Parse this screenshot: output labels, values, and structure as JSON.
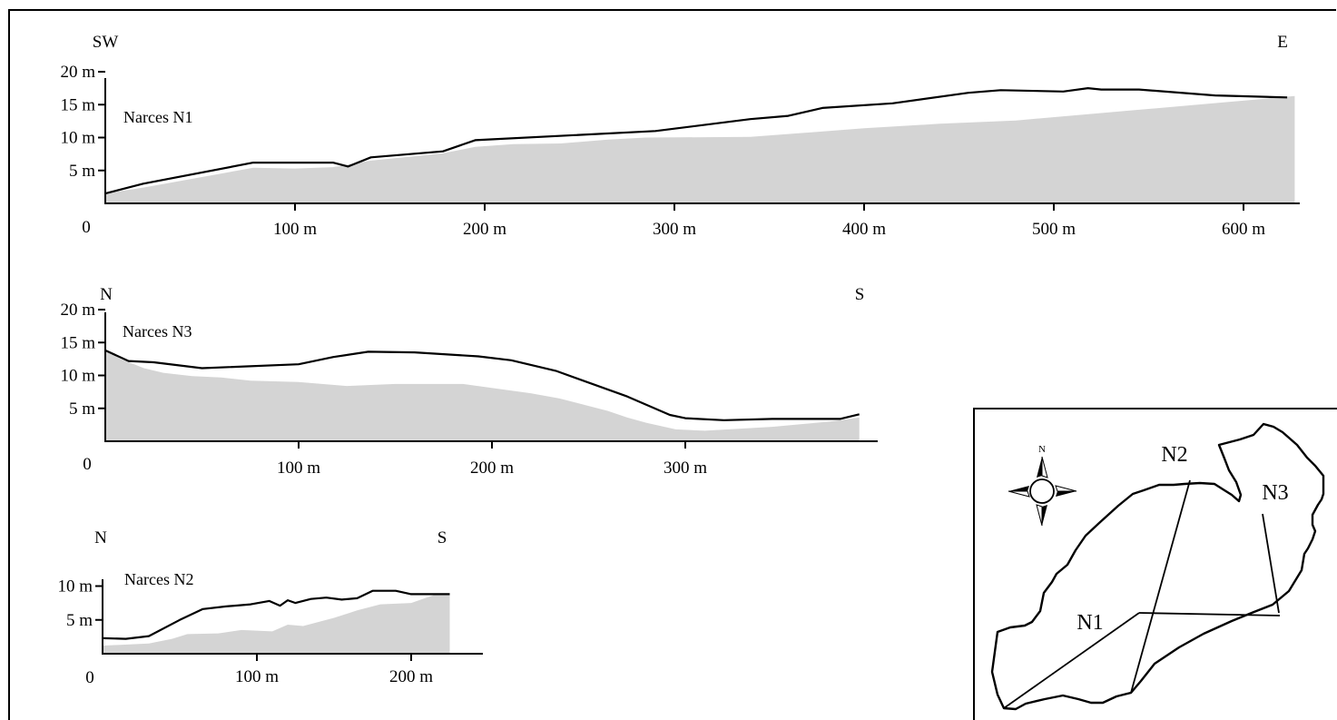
{
  "profiles": [
    {
      "id": "n1",
      "name": "Narces N1",
      "dir_left": "SW",
      "dir_right": "E",
      "origin_label": "0",
      "x_ticks": [
        {
          "value": 100,
          "label": "100 m"
        },
        {
          "value": 200,
          "label": "200 m"
        },
        {
          "value": 300,
          "label": "300 m"
        },
        {
          "value": 400,
          "label": "400 m"
        },
        {
          "value": 500,
          "label": "500 m"
        },
        {
          "value": 600,
          "label": "600 m"
        }
      ],
      "y_ticks": [
        {
          "value": 5,
          "label": "5 m"
        },
        {
          "value": 10,
          "label": "10 m"
        },
        {
          "value": 15,
          "label": "15 m"
        },
        {
          "value": 20,
          "label": "20 m"
        }
      ],
      "surface": [
        [
          0,
          1.5
        ],
        [
          20,
          3
        ],
        [
          78,
          6.2
        ],
        [
          120,
          6.2
        ],
        [
          128,
          5.6
        ],
        [
          140,
          7
        ],
        [
          178,
          7.9
        ],
        [
          195,
          9.6
        ],
        [
          290,
          11
        ],
        [
          340,
          12.8
        ],
        [
          360,
          13.3
        ],
        [
          378,
          14.5
        ],
        [
          415,
          15.2
        ],
        [
          455,
          16.8
        ],
        [
          472,
          17.2
        ],
        [
          505,
          17
        ],
        [
          518,
          17.5
        ],
        [
          525,
          17.3
        ],
        [
          545,
          17.3
        ],
        [
          585,
          16.4
        ],
        [
          623,
          16.1
        ]
      ],
      "ground": [
        [
          0,
          1.5
        ],
        [
          20,
          2.4
        ],
        [
          78,
          5.4
        ],
        [
          100,
          5.3
        ],
        [
          120,
          5.5
        ],
        [
          140,
          6.5
        ],
        [
          178,
          7.6
        ],
        [
          195,
          8.6
        ],
        [
          215,
          9
        ],
        [
          240,
          9.1
        ],
        [
          265,
          9.7
        ],
        [
          285,
          10
        ],
        [
          340,
          10.1
        ],
        [
          400,
          11.4
        ],
        [
          440,
          12.1
        ],
        [
          480,
          12.6
        ],
        [
          540,
          14.1
        ],
        [
          580,
          15.1
        ],
        [
          627,
          16.3
        ]
      ]
    },
    {
      "id": "n3",
      "name": "Narces N3",
      "dir_left": "N",
      "dir_right": "S",
      "origin_label": "0",
      "x_ticks": [
        {
          "value": 100,
          "label": "100 m"
        },
        {
          "value": 200,
          "label": "200 m"
        },
        {
          "value": 300,
          "label": "300 m"
        }
      ],
      "y_ticks": [
        {
          "value": 5,
          "label": "5 m"
        },
        {
          "value": 10,
          "label": "10 m"
        },
        {
          "value": 15,
          "label": "15 m"
        },
        {
          "value": 20,
          "label": "20 m"
        }
      ],
      "surface": [
        [
          0,
          13.8
        ],
        [
          12,
          12.2
        ],
        [
          25,
          12
        ],
        [
          50,
          11.1
        ],
        [
          100,
          11.7
        ],
        [
          118,
          12.8
        ],
        [
          136,
          13.6
        ],
        [
          160,
          13.5
        ],
        [
          193,
          12.9
        ],
        [
          210,
          12.3
        ],
        [
          233,
          10.7
        ],
        [
          270,
          6.8
        ],
        [
          292,
          4
        ],
        [
          300,
          3.5
        ],
        [
          320,
          3.2
        ],
        [
          345,
          3.4
        ],
        [
          380,
          3.4
        ],
        [
          390,
          4.1
        ]
      ],
      "ground": [
        [
          0,
          13.8
        ],
        [
          8,
          12.5
        ],
        [
          20,
          11.1
        ],
        [
          30,
          10.4
        ],
        [
          45,
          9.9
        ],
        [
          60,
          9.7
        ],
        [
          75,
          9.2
        ],
        [
          100,
          9
        ],
        [
          125,
          8.4
        ],
        [
          150,
          8.7
        ],
        [
          185,
          8.7
        ],
        [
          205,
          7.9
        ],
        [
          220,
          7.3
        ],
        [
          235,
          6.5
        ],
        [
          260,
          4.6
        ],
        [
          270,
          3.6
        ],
        [
          280,
          2.8
        ],
        [
          295,
          1.8
        ],
        [
          310,
          1.6
        ],
        [
          345,
          2.2
        ],
        [
          375,
          3
        ],
        [
          390,
          3.6
        ]
      ]
    },
    {
      "id": "n2",
      "name": "Narces N2",
      "dir_left": "N",
      "dir_right": "S",
      "origin_label": "0",
      "x_ticks": [
        {
          "value": 100,
          "label": "100 m"
        },
        {
          "value": 200,
          "label": "200 m"
        }
      ],
      "y_ticks": [
        {
          "value": 5,
          "label": "5 m"
        },
        {
          "value": 10,
          "label": "10 m"
        }
      ],
      "surface": [
        [
          0,
          2.3
        ],
        [
          15,
          2.2
        ],
        [
          30,
          2.6
        ],
        [
          50,
          5
        ],
        [
          65,
          6.6
        ],
        [
          80,
          7
        ],
        [
          96,
          7.3
        ],
        [
          108,
          7.8
        ],
        [
          115,
          7.1
        ],
        [
          120,
          7.9
        ],
        [
          125,
          7.5
        ],
        [
          135,
          8.1
        ],
        [
          145,
          8.3
        ],
        [
          155,
          8
        ],
        [
          165,
          8.2
        ],
        [
          175,
          9.3
        ],
        [
          190,
          9.3
        ],
        [
          200,
          8.8
        ],
        [
          225,
          8.8
        ]
      ],
      "ground": [
        [
          0,
          1.2
        ],
        [
          30,
          1.5
        ],
        [
          45,
          2.2
        ],
        [
          55,
          2.9
        ],
        [
          75,
          3
        ],
        [
          90,
          3.5
        ],
        [
          110,
          3.3
        ],
        [
          120,
          4.3
        ],
        [
          130,
          4.1
        ],
        [
          150,
          5.3
        ],
        [
          165,
          6.4
        ],
        [
          180,
          7.3
        ],
        [
          200,
          7.5
        ],
        [
          215,
          8.7
        ],
        [
          225,
          8.8
        ]
      ]
    }
  ],
  "map": {
    "labels": {
      "n1": "N1",
      "n2": "N2",
      "n3": "N3"
    },
    "compass_north": "N"
  }
}
